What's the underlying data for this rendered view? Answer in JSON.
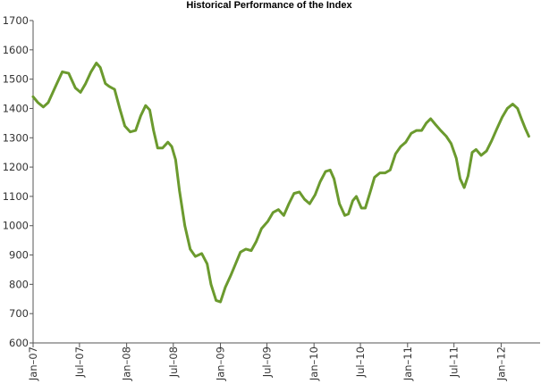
{
  "chart_data": {
    "type": "line",
    "title": "Historical Performance of the Index",
    "xlabel": "",
    "ylabel": "",
    "ylim": [
      600,
      1700
    ],
    "yticks": [
      600,
      700,
      800,
      900,
      1000,
      1100,
      1200,
      1300,
      1400,
      1500,
      1600,
      1700
    ],
    "xlim": [
      "2007-01",
      "2012-06"
    ],
    "xticks": [
      {
        "date": "2007-01",
        "label": "Jan–07"
      },
      {
        "date": "2007-07",
        "label": "Jul–07"
      },
      {
        "date": "2008-01",
        "label": "Jan–08"
      },
      {
        "date": "2008-07",
        "label": "Jul–08"
      },
      {
        "date": "2009-01",
        "label": "Jan–09"
      },
      {
        "date": "2009-07",
        "label": "Jul–09"
      },
      {
        "date": "2010-01",
        "label": "Jan–10"
      },
      {
        "date": "2010-07",
        "label": "Jul–10"
      },
      {
        "date": "2011-01",
        "label": "Jan–11"
      },
      {
        "date": "2011-07",
        "label": "Jul–11"
      },
      {
        "date": "2012-01",
        "label": "Jan–12"
      }
    ],
    "grid": false,
    "legend": "none",
    "colors": {
      "series": "#6b9a2e",
      "axis": "#555555"
    },
    "series": [
      {
        "values": [
          [
            "2007-01-01",
            1440
          ],
          [
            "2007-01-20",
            1420
          ],
          [
            "2007-02-10",
            1405
          ],
          [
            "2007-03-01",
            1420
          ],
          [
            "2007-04-01",
            1480
          ],
          [
            "2007-04-25",
            1525
          ],
          [
            "2007-05-20",
            1520
          ],
          [
            "2007-06-15",
            1470
          ],
          [
            "2007-07-05",
            1455
          ],
          [
            "2007-07-25",
            1485
          ],
          [
            "2007-08-15",
            1525
          ],
          [
            "2007-09-05",
            1555
          ],
          [
            "2007-09-20",
            1540
          ],
          [
            "2007-10-10",
            1485
          ],
          [
            "2007-10-25",
            1475
          ],
          [
            "2007-11-15",
            1465
          ],
          [
            "2007-12-05",
            1400
          ],
          [
            "2007-12-25",
            1340
          ],
          [
            "2008-01-15",
            1320
          ],
          [
            "2008-02-05",
            1325
          ],
          [
            "2008-02-25",
            1375
          ],
          [
            "2008-03-15",
            1410
          ],
          [
            "2008-03-31",
            1395
          ],
          [
            "2008-04-15",
            1325
          ],
          [
            "2008-05-01",
            1265
          ],
          [
            "2008-05-20",
            1265
          ],
          [
            "2008-06-10",
            1285
          ],
          [
            "2008-06-25",
            1270
          ],
          [
            "2008-07-10",
            1225
          ],
          [
            "2008-07-25",
            1120
          ],
          [
            "2008-08-15",
            1000
          ],
          [
            "2008-09-05",
            920
          ],
          [
            "2008-09-25",
            895
          ],
          [
            "2008-10-20",
            905
          ],
          [
            "2008-11-10",
            870
          ],
          [
            "2008-11-25",
            800
          ],
          [
            "2008-12-15",
            745
          ],
          [
            "2009-01-01",
            740
          ],
          [
            "2009-01-20",
            790
          ],
          [
            "2009-02-10",
            830
          ],
          [
            "2009-03-01",
            870
          ],
          [
            "2009-03-20",
            910
          ],
          [
            "2009-04-10",
            920
          ],
          [
            "2009-05-01",
            915
          ],
          [
            "2009-05-20",
            945
          ],
          [
            "2009-06-10",
            990
          ],
          [
            "2009-07-05",
            1015
          ],
          [
            "2009-07-25",
            1045
          ],
          [
            "2009-08-15",
            1055
          ],
          [
            "2009-09-05",
            1035
          ],
          [
            "2009-09-25",
            1075
          ],
          [
            "2009-10-15",
            1110
          ],
          [
            "2009-11-05",
            1115
          ],
          [
            "2009-11-25",
            1090
          ],
          [
            "2009-12-15",
            1075
          ],
          [
            "2010-01-05",
            1105
          ],
          [
            "2010-01-25",
            1150
          ],
          [
            "2010-02-15",
            1185
          ],
          [
            "2010-03-05",
            1190
          ],
          [
            "2010-03-20",
            1160
          ],
          [
            "2010-04-10",
            1075
          ],
          [
            "2010-05-01",
            1035
          ],
          [
            "2010-05-15",
            1040
          ],
          [
            "2010-06-01",
            1085
          ],
          [
            "2010-06-15",
            1100
          ],
          [
            "2010-07-05",
            1060
          ],
          [
            "2010-07-20",
            1060
          ],
          [
            "2010-08-10",
            1120
          ],
          [
            "2010-08-25",
            1165
          ],
          [
            "2010-09-15",
            1180
          ],
          [
            "2010-10-05",
            1180
          ],
          [
            "2010-10-25",
            1190
          ],
          [
            "2010-11-15",
            1245
          ],
          [
            "2010-12-05",
            1270
          ],
          [
            "2010-12-25",
            1285
          ],
          [
            "2011-01-15",
            1315
          ],
          [
            "2011-02-05",
            1325
          ],
          [
            "2011-02-25",
            1325
          ],
          [
            "2011-03-15",
            1350
          ],
          [
            "2011-04-01",
            1365
          ],
          [
            "2011-04-20",
            1345
          ],
          [
            "2011-05-10",
            1325
          ],
          [
            "2011-06-01",
            1305
          ],
          [
            "2011-06-20",
            1280
          ],
          [
            "2011-07-10",
            1230
          ],
          [
            "2011-07-25",
            1160
          ],
          [
            "2011-08-10",
            1130
          ],
          [
            "2011-08-25",
            1170
          ],
          [
            "2011-09-10",
            1250
          ],
          [
            "2011-09-25",
            1260
          ],
          [
            "2011-10-15",
            1240
          ],
          [
            "2011-11-05",
            1255
          ],
          [
            "2011-11-25",
            1290
          ],
          [
            "2011-12-15",
            1330
          ],
          [
            "2012-01-05",
            1370
          ],
          [
            "2012-01-25",
            1400
          ],
          [
            "2012-02-15",
            1415
          ],
          [
            "2012-03-05",
            1400
          ],
          [
            "2012-03-20",
            1365
          ],
          [
            "2012-04-05",
            1330
          ],
          [
            "2012-04-18",
            1305
          ]
        ]
      }
    ]
  }
}
